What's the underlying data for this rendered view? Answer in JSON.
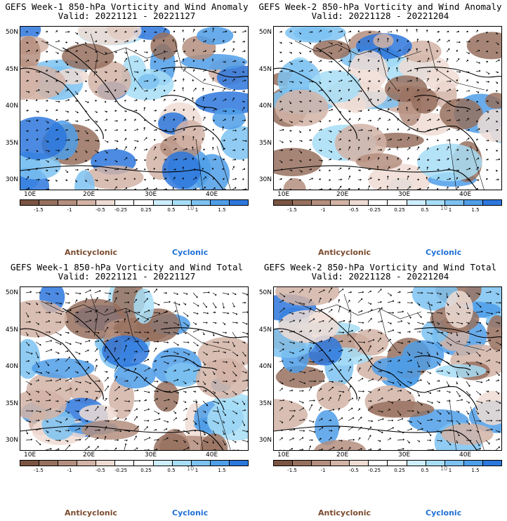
{
  "colors": {
    "anticyclonic": "#7b4a2e",
    "cyclonic": "#1f6fd6",
    "colorbar": [
      "#7a5442",
      "#96705e",
      "#b48e7e",
      "#d2b3a6",
      "#eedcd3",
      "#ffffff",
      "#ffffff",
      "#cdeefc",
      "#a7ddf6",
      "#7dc2f1",
      "#4f9ee8",
      "#2d77dc"
    ]
  },
  "colorbar_labels": [
    "-1.5",
    "-1",
    "-0.5",
    "-0.25",
    "0.25",
    "0.5",
    "1",
    "1.5"
  ],
  "scale_note": "10",
  "lat_labels": [
    "50N",
    "45N",
    "40N",
    "35N",
    "30N"
  ],
  "lon_labels": [
    "10E",
    "20E",
    "30E",
    "40E"
  ],
  "legend": {
    "anticyclonic": "Anticyclonic",
    "cyclonic": "Cyclonic"
  },
  "panels": [
    {
      "title": "GEFS Week-1 850-hPa Vorticity and Wind Anomaly",
      "valid": "Valid: 20221121 - 20221127"
    },
    {
      "title": "GEFS Week-2 850-hPa Vorticity and Wind Anomaly",
      "valid": "Valid: 20221128 - 20221204"
    },
    {
      "title": "GEFS Week-1 850-hPa Vorticity and Wind Total",
      "valid": "Valid: 20221121 - 20221127"
    },
    {
      "title": "GEFS Week-2 850-hPa Vorticity and Wind Total",
      "valid": "Valid: 20221128 - 20221204"
    }
  ]
}
